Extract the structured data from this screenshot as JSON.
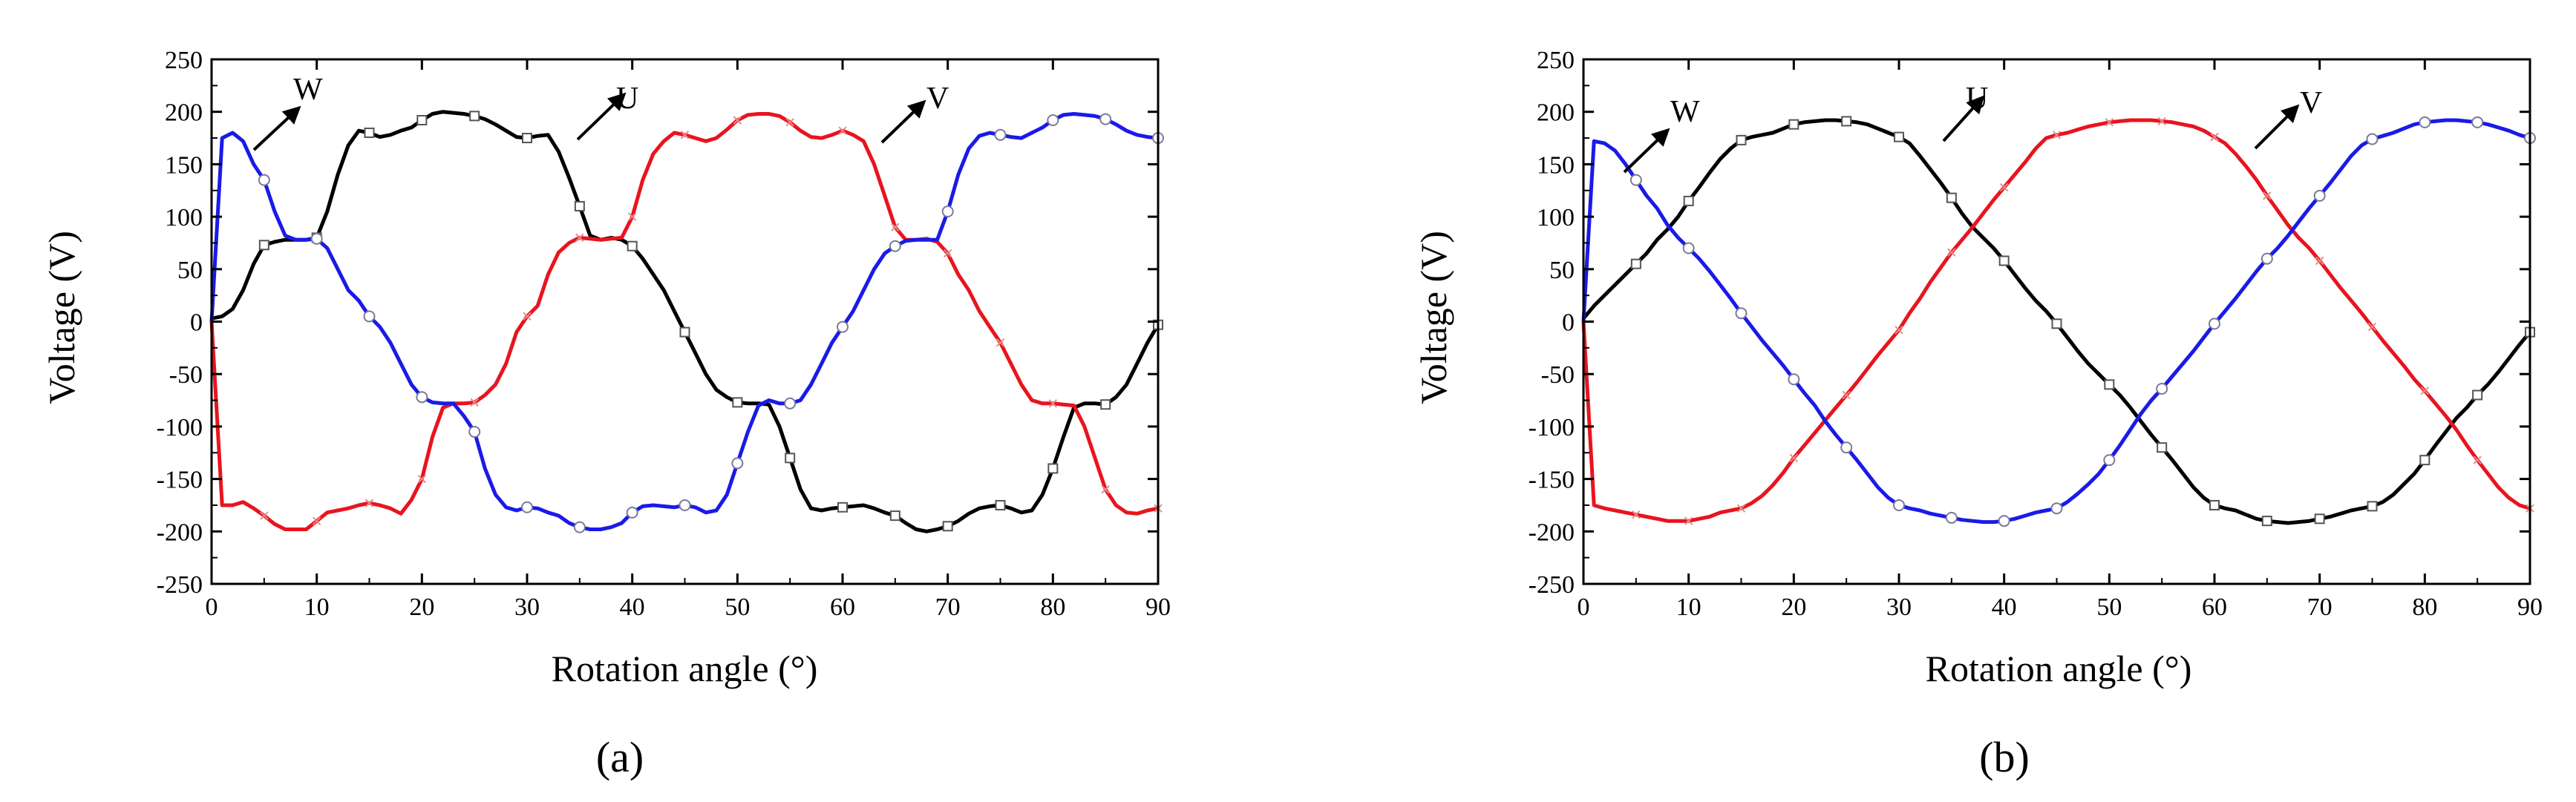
{
  "colors": {
    "U": "#000000",
    "V": "#e8141e",
    "W": "#1a1ae8"
  },
  "chart_data": [
    {
      "type": "line",
      "panel_label": "(a)",
      "xlabel": "Rotation angle (°)",
      "ylabel": "Voltage (V)",
      "xlim": [
        0,
        90
      ],
      "ylim": [
        -250,
        250
      ],
      "xticks": [
        "0",
        "10",
        "20",
        "30",
        "40",
        "50",
        "60",
        "70",
        "80",
        "90"
      ],
      "yticks": [
        "250",
        "200",
        "150",
        "100",
        "50",
        "0",
        "-50",
        "-100",
        "-150",
        "-200",
        "-250"
      ],
      "x": [
        0,
        1,
        2,
        3,
        4,
        5,
        6,
        7,
        8,
        9,
        10,
        11,
        12,
        13,
        14,
        15,
        16,
        17,
        18,
        19,
        20,
        21,
        22,
        23,
        24,
        25,
        26,
        27,
        28,
        29,
        30,
        31,
        32,
        33,
        34,
        35,
        36,
        37,
        38,
        39,
        40,
        41,
        42,
        43,
        44,
        45,
        46,
        47,
        48,
        49,
        50,
        51,
        52,
        53,
        54,
        55,
        56,
        57,
        58,
        59,
        60,
        61,
        62,
        63,
        64,
        65,
        66,
        67,
        68,
        69,
        70,
        71,
        72,
        73,
        74,
        75,
        76,
        77,
        78,
        79,
        80,
        81,
        82,
        83,
        84,
        85,
        86,
        87,
        88,
        89,
        90
      ],
      "series": [
        {
          "name": "U",
          "marker": "square",
          "values": [
            3,
            5,
            12,
            30,
            55,
            73,
            76,
            78,
            78,
            78,
            80,
            105,
            140,
            168,
            182,
            180,
            176,
            178,
            182,
            185,
            192,
            198,
            200,
            199,
            198,
            196,
            193,
            188,
            182,
            176,
            175,
            177,
            178,
            162,
            137,
            110,
            82,
            78,
            80,
            78,
            72,
            60,
            45,
            30,
            10,
            -10,
            -30,
            -50,
            -65,
            -72,
            -77,
            -78,
            -78,
            -79,
            -100,
            -130,
            -160,
            -178,
            -180,
            -178,
            -177,
            -176,
            -175,
            -178,
            -182,
            -185,
            -192,
            -198,
            -200,
            -198,
            -195,
            -190,
            -183,
            -178,
            -176,
            -175,
            -178,
            -182,
            -180,
            -165,
            -140,
            -110,
            -82,
            -78,
            -78,
            -79,
            -72,
            -60,
            -40,
            -20,
            -3
          ]
        },
        {
          "name": "V",
          "marker": "x",
          "values": [
            0,
            -175,
            -175,
            -172,
            -178,
            -185,
            -193,
            -198,
            -198,
            -198,
            -190,
            -182,
            -180,
            -178,
            -175,
            -173,
            -175,
            -178,
            -183,
            -170,
            -150,
            -110,
            -82,
            -78,
            -78,
            -77,
            -70,
            -60,
            -40,
            -10,
            5,
            15,
            45,
            66,
            75,
            80,
            79,
            78,
            79,
            80,
            100,
            135,
            160,
            172,
            180,
            178,
            175,
            172,
            175,
            183,
            192,
            197,
            198,
            198,
            196,
            190,
            182,
            176,
            175,
            178,
            182,
            178,
            172,
            150,
            120,
            90,
            78,
            78,
            79,
            76,
            65,
            45,
            30,
            10,
            -5,
            -20,
            -40,
            -60,
            -75,
            -78,
            -78,
            -79,
            -80,
            -100,
            -130,
            -160,
            -175,
            -182,
            -183,
            -180,
            -178
          ]
        },
        {
          "name": "W",
          "marker": "circle",
          "values": [
            0,
            175,
            180,
            172,
            150,
            135,
            105,
            82,
            78,
            78,
            79,
            70,
            50,
            30,
            20,
            5,
            -5,
            -20,
            -40,
            -60,
            -72,
            -77,
            -78,
            -78,
            -90,
            -105,
            -140,
            -165,
            -177,
            -180,
            -177,
            -178,
            -182,
            -185,
            -192,
            -196,
            -198,
            -198,
            -196,
            -192,
            -182,
            -176,
            -175,
            -176,
            -177,
            -175,
            -177,
            -182,
            -180,
            -165,
            -135,
            -105,
            -80,
            -75,
            -78,
            -78,
            -75,
            -60,
            -40,
            -20,
            -5,
            10,
            30,
            50,
            65,
            72,
            77,
            78,
            78,
            78,
            105,
            140,
            165,
            177,
            180,
            178,
            176,
            175,
            180,
            185,
            192,
            197,
            198,
            197,
            196,
            193,
            188,
            182,
            178,
            176,
            175
          ]
        }
      ],
      "phase_labels": [
        "W",
        "U",
        "V"
      ]
    },
    {
      "type": "line",
      "panel_label": "(b)",
      "xlabel": "Rotation angle (°)",
      "ylabel": "Voltage (V)",
      "xlim": [
        0,
        90
      ],
      "ylim": [
        -250,
        250
      ],
      "xticks": [
        "0",
        "10",
        "20",
        "30",
        "40",
        "50",
        "60",
        "70",
        "80",
        "90"
      ],
      "yticks": [
        "250",
        "200",
        "150",
        "100",
        "50",
        "0",
        "-50",
        "-100",
        "-150",
        "-200",
        "-250"
      ],
      "x": [
        0,
        1,
        2,
        3,
        4,
        5,
        6,
        7,
        8,
        9,
        10,
        11,
        12,
        13,
        14,
        15,
        16,
        17,
        18,
        19,
        20,
        21,
        22,
        23,
        24,
        25,
        26,
        27,
        28,
        29,
        30,
        31,
        32,
        33,
        34,
        35,
        36,
        37,
        38,
        39,
        40,
        41,
        42,
        43,
        44,
        45,
        46,
        47,
        48,
        49,
        50,
        51,
        52,
        53,
        54,
        55,
        56,
        57,
        58,
        59,
        60,
        61,
        62,
        63,
        64,
        65,
        66,
        67,
        68,
        69,
        70,
        71,
        72,
        73,
        74,
        75,
        76,
        77,
        78,
        79,
        80,
        81,
        82,
        83,
        84,
        85,
        86,
        87,
        88,
        89,
        90
      ],
      "series": [
        {
          "name": "U",
          "marker": "square",
          "values": [
            3,
            15,
            25,
            35,
            45,
            55,
            65,
            78,
            88,
            100,
            115,
            128,
            142,
            155,
            165,
            173,
            176,
            178,
            180,
            184,
            188,
            190,
            191,
            192,
            192,
            191,
            190,
            188,
            184,
            180,
            176,
            170,
            158,
            145,
            132,
            118,
            103,
            90,
            80,
            70,
            58,
            45,
            32,
            20,
            10,
            -2,
            -15,
            -28,
            -40,
            -50,
            -60,
            -70,
            -82,
            -95,
            -108,
            -120,
            -132,
            -145,
            -158,
            -168,
            -175,
            -178,
            -180,
            -184,
            -188,
            -190,
            -191,
            -192,
            -191,
            -190,
            -188,
            -186,
            -183,
            -180,
            -178,
            -176,
            -172,
            -165,
            -155,
            -145,
            -132,
            -118,
            -105,
            -92,
            -82,
            -70,
            -60,
            -48,
            -35,
            -22,
            -10
          ]
        },
        {
          "name": "V",
          "marker": "x",
          "values": [
            0,
            -175,
            -178,
            -180,
            -182,
            -184,
            -186,
            -188,
            -190,
            -190,
            -190,
            -188,
            -186,
            -182,
            -180,
            -178,
            -173,
            -166,
            -156,
            -144,
            -130,
            -118,
            -106,
            -94,
            -82,
            -70,
            -58,
            -45,
            -32,
            -20,
            -8,
            8,
            22,
            38,
            52,
            66,
            78,
            90,
            103,
            116,
            128,
            140,
            152,
            165,
            175,
            178,
            180,
            183,
            186,
            188,
            190,
            191,
            192,
            192,
            192,
            191,
            190,
            188,
            186,
            182,
            176,
            170,
            160,
            148,
            135,
            120,
            106,
            92,
            80,
            70,
            58,
            45,
            32,
            20,
            8,
            -5,
            -18,
            -30,
            -42,
            -55,
            -66,
            -78,
            -90,
            -103,
            -118,
            -132,
            -145,
            -158,
            -168,
            -175,
            -178
          ]
        },
        {
          "name": "W",
          "marker": "circle",
          "values": [
            0,
            172,
            170,
            163,
            150,
            135,
            120,
            108,
            92,
            80,
            70,
            60,
            48,
            35,
            22,
            8,
            -5,
            -18,
            -30,
            -42,
            -55,
            -68,
            -80,
            -95,
            -108,
            -120,
            -132,
            -145,
            -158,
            -168,
            -175,
            -178,
            -180,
            -183,
            -185,
            -187,
            -189,
            -190,
            -191,
            -191,
            -190,
            -188,
            -185,
            -182,
            -180,
            -178,
            -172,
            -164,
            -155,
            -145,
            -132,
            -118,
            -103,
            -88,
            -75,
            -64,
            -52,
            -40,
            -28,
            -15,
            -2,
            10,
            22,
            35,
            48,
            60,
            70,
            82,
            95,
            108,
            120,
            132,
            145,
            158,
            168,
            174,
            177,
            180,
            184,
            188,
            190,
            191,
            192,
            192,
            191,
            190,
            188,
            185,
            182,
            178,
            175
          ]
        }
      ],
      "phase_labels": [
        "W",
        "U",
        "V"
      ]
    }
  ]
}
